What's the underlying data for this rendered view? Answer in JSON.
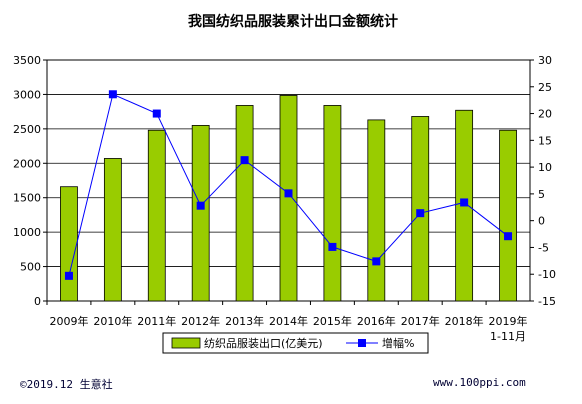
{
  "chart_data": {
    "type": "bar",
    "title": "我国纺织品服装累计出口金额统计",
    "categories": [
      "2009年",
      "2010年",
      "2011年",
      "2012年",
      "2013年",
      "2014年",
      "2015年",
      "2016年",
      "2017年",
      "2018年",
      "2019年"
    ],
    "category_sublabels": [
      "",
      "",
      "",
      "",
      "",
      "",
      "",
      "",
      "",
      "",
      "1-11月"
    ],
    "series": [
      {
        "name": "纺织品服装出口(亿美元)",
        "type": "bar",
        "axis": "left",
        "color": "#99cc00",
        "values": [
          1660,
          2070,
          2480,
          2550,
          2840,
          2985,
          2840,
          2630,
          2680,
          2770,
          2480
        ]
      },
      {
        "name": "增幅%",
        "type": "line",
        "axis": "right",
        "color": "#0000ff",
        "values": [
          -10.3,
          23.6,
          20.0,
          2.8,
          11.3,
          5.1,
          -4.9,
          -7.6,
          1.4,
          3.4,
          -2.9
        ]
      }
    ],
    "y_left": {
      "min": 0,
      "max": 3500,
      "step": 500
    },
    "y_right": {
      "min": -15,
      "max": 30,
      "step": 5
    },
    "grid": "horizontal",
    "legend": "bottom"
  },
  "footer": {
    "left": "©2019.12 生意社",
    "right": "www.100ppi.com"
  }
}
